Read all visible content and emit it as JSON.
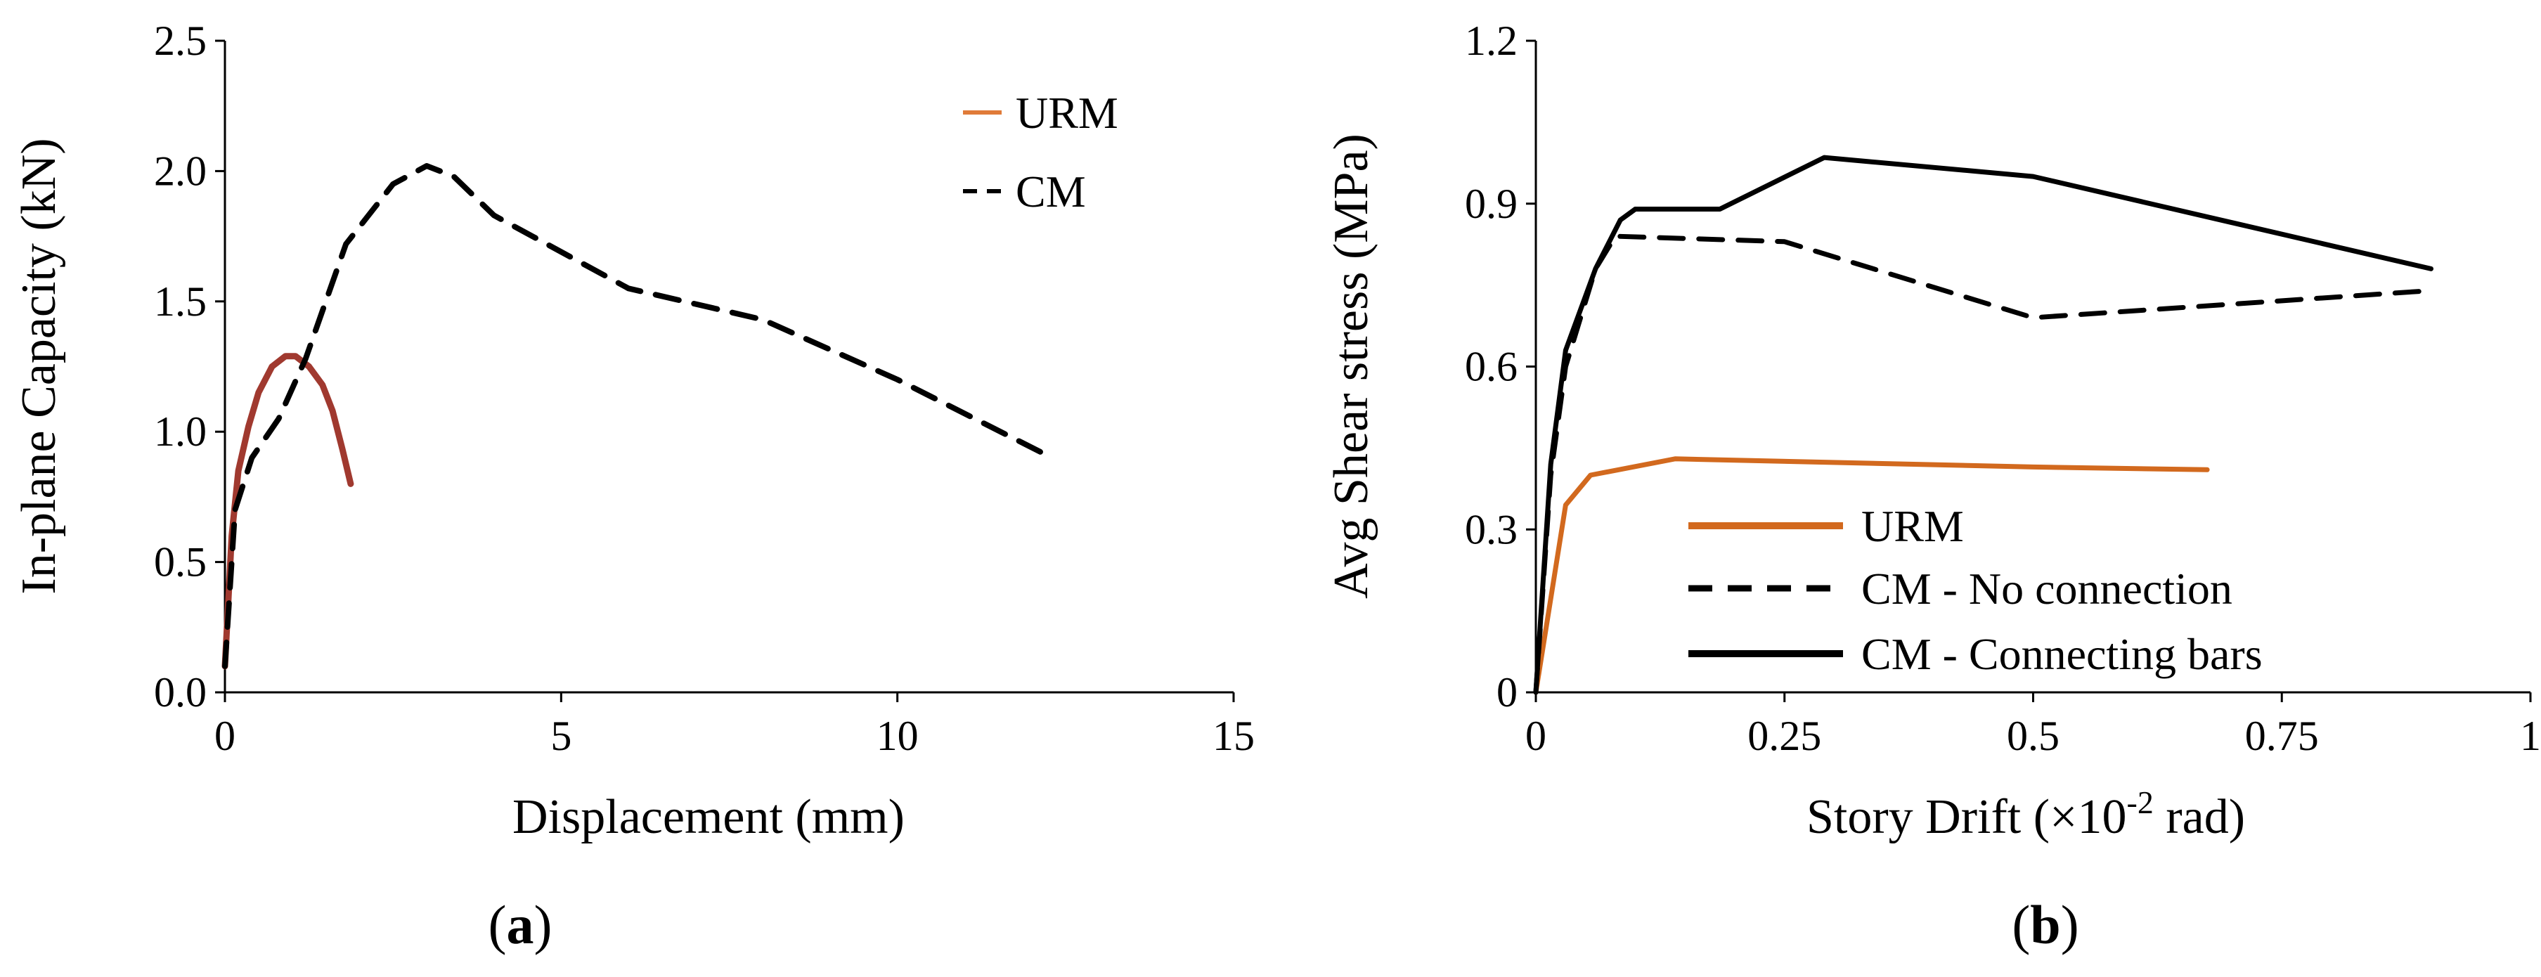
{
  "chart_data": [
    {
      "type": "line",
      "panel_label": "a",
      "title": "",
      "xlabel": "Displacement (mm)",
      "ylabel": "In-plane Capacity (kN)",
      "xlim": [
        0,
        15
      ],
      "ylim": [
        0,
        2.5
      ],
      "xticks": [
        0,
        5,
        10,
        15
      ],
      "yticks": [
        0.0,
        0.5,
        1.0,
        1.5,
        2.0,
        2.5
      ],
      "xtick_labels": [
        "0",
        "5",
        "10",
        "15"
      ],
      "ytick_labels": [
        "0.0",
        "0.5",
        "1.0",
        "1.5",
        "2.0",
        "2.5"
      ],
      "grid": false,
      "legend_position": "top-right",
      "series": [
        {
          "name": "URM",
          "style": "solid",
          "color": "#a0392f",
          "legend_color": "#e07b39",
          "x": [
            0.0,
            0.1,
            0.2,
            0.35,
            0.5,
            0.7,
            0.9,
            1.05,
            1.25,
            1.45,
            1.6,
            1.75,
            1.87
          ],
          "y": [
            0.1,
            0.6,
            0.85,
            1.02,
            1.15,
            1.25,
            1.29,
            1.29,
            1.25,
            1.18,
            1.08,
            0.93,
            0.8
          ]
        },
        {
          "name": "CM",
          "style": "dashed",
          "color": "#000000",
          "x": [
            0.0,
            0.15,
            0.4,
            0.8,
            1.2,
            1.8,
            2.5,
            3.0,
            3.4,
            4.0,
            6.0,
            8.0,
            10.0,
            12.3
          ],
          "y": [
            0.1,
            0.7,
            0.9,
            1.05,
            1.28,
            1.72,
            1.95,
            2.02,
            1.98,
            1.83,
            1.55,
            1.43,
            1.2,
            0.9
          ]
        }
      ]
    },
    {
      "type": "line",
      "panel_label": "b",
      "title": "",
      "xlabel_main": "Story Drift (×10",
      "xlabel_sup": "-2",
      "xlabel_end": " rad)",
      "ylabel": "Avg Shear stress (MPa)",
      "xlim": [
        0,
        1
      ],
      "ylim": [
        0,
        1.2
      ],
      "xticks": [
        0,
        0.25,
        0.5,
        0.75,
        1
      ],
      "yticks": [
        0,
        0.3,
        0.6,
        0.9,
        1.2
      ],
      "xtick_labels": [
        "0",
        "0.25",
        "0.5",
        "0.75",
        "1"
      ],
      "ytick_labels": [
        "0",
        "0.3",
        "0.6",
        "0.9",
        "1.2"
      ],
      "grid": false,
      "legend_position": "bottom-center",
      "series": [
        {
          "name": "URM",
          "style": "solid",
          "color": "#d2691e",
          "x": [
            0.0,
            0.03,
            0.055,
            0.14,
            0.5,
            0.675
          ],
          "y": [
            0.0,
            0.345,
            0.4,
            0.43,
            0.415,
            0.41
          ]
        },
        {
          "name": "CM - No connection",
          "style": "dashed",
          "color": "#000000",
          "x": [
            0.0,
            0.015,
            0.03,
            0.06,
            0.08,
            0.25,
            0.5,
            0.9
          ],
          "y": [
            0.0,
            0.4,
            0.6,
            0.78,
            0.84,
            0.83,
            0.69,
            0.74
          ]
        },
        {
          "name": "CM - Connecting bars",
          "style": "solid",
          "color": "#000000",
          "x": [
            0.0,
            0.015,
            0.03,
            0.06,
            0.085,
            0.1,
            0.185,
            0.29,
            0.5,
            0.9
          ],
          "y": [
            0.0,
            0.42,
            0.63,
            0.78,
            0.87,
            0.89,
            0.89,
            0.985,
            0.95,
            0.78
          ]
        }
      ]
    }
  ]
}
